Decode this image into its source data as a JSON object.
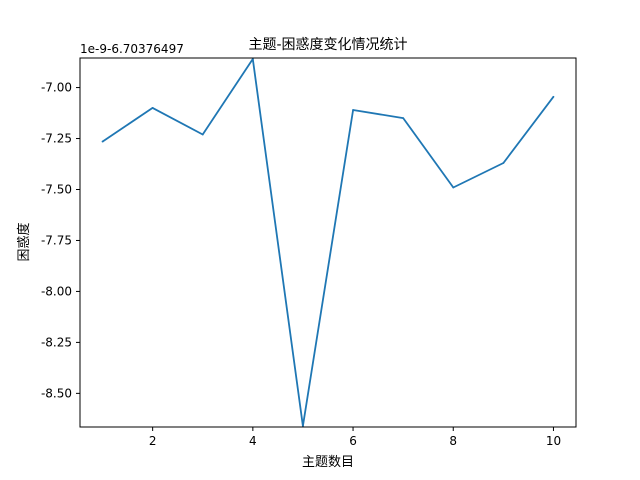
{
  "chart_data": {
    "type": "line",
    "title": "主题-困惑度变化情况统计",
    "xlabel": "主题数目",
    "ylabel": "困惑度",
    "offset_text": "1e-9-6.70376497",
    "xlim": [
      0.55,
      10.45
    ],
    "ylim": [
      -8.665,
      -6.855
    ],
    "xticks": [
      2,
      4,
      6,
      8,
      10
    ],
    "xtick_labels": [
      "2",
      "4",
      "6",
      "8",
      "10"
    ],
    "yticks": [
      -7.0,
      -7.25,
      -7.5,
      -7.75,
      -8.0,
      -8.25,
      -8.5
    ],
    "ytick_labels": [
      "-7.00",
      "-7.25",
      "-7.50",
      "-7.75",
      "-8.00",
      "-8.25",
      "-8.50"
    ],
    "grid": false,
    "x": [
      1,
      2,
      3,
      4,
      5,
      6,
      7,
      8,
      9,
      10
    ],
    "series": [
      {
        "values": [
          -7.265,
          -7.1,
          -7.23,
          -6.86,
          -8.66,
          -7.11,
          -7.15,
          -7.49,
          -7.37,
          -7.045
        ],
        "color": "#1f77b4"
      }
    ]
  }
}
